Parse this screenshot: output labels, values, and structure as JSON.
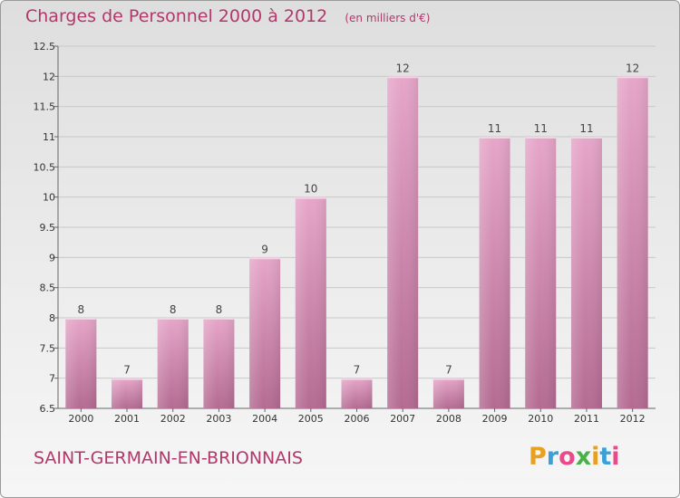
{
  "title": "Charges de Personnel 2000 à 2012",
  "unit_note": "(en milliers d'€)",
  "commune": "SAINT-GERMAIN-EN-BRIONNAIS",
  "logo": {
    "letters": [
      "P",
      "r",
      "o",
      "x",
      "i",
      "t",
      "i"
    ],
    "colors": [
      "#e8a020",
      "#3aa0d8",
      "#e84a8a",
      "#4ab04a",
      "#e8a020",
      "#3aa0d8",
      "#e84a8a"
    ]
  },
  "chart_data": {
    "type": "bar",
    "categories": [
      "2000",
      "2001",
      "2002",
      "2003",
      "2004",
      "2005",
      "2006",
      "2007",
      "2008",
      "2009",
      "2010",
      "2011",
      "2012"
    ],
    "values": [
      8,
      7,
      8,
      8,
      9,
      10,
      7,
      12,
      7,
      11,
      11,
      11,
      12
    ],
    "data_labels": [
      "8",
      "7",
      "8",
      "8",
      "9",
      "10",
      "7",
      "12",
      "7",
      "11",
      "11",
      "11",
      "12"
    ],
    "ylim": [
      6.5,
      12.5
    ],
    "yticks": [
      6.5,
      7,
      7.5,
      8,
      8.5,
      9,
      9.5,
      10,
      10.5,
      11,
      11.5,
      12,
      12.5
    ],
    "ytick_labels": [
      "6.5",
      "7",
      "7.5",
      "8",
      "8.5",
      "9",
      "9.5",
      "10",
      "10.5",
      "11",
      "11.5",
      "12",
      "12.5"
    ],
    "grid": true,
    "bar_color": "#d98fb8",
    "bar_color_dark": "#b56a93"
  }
}
